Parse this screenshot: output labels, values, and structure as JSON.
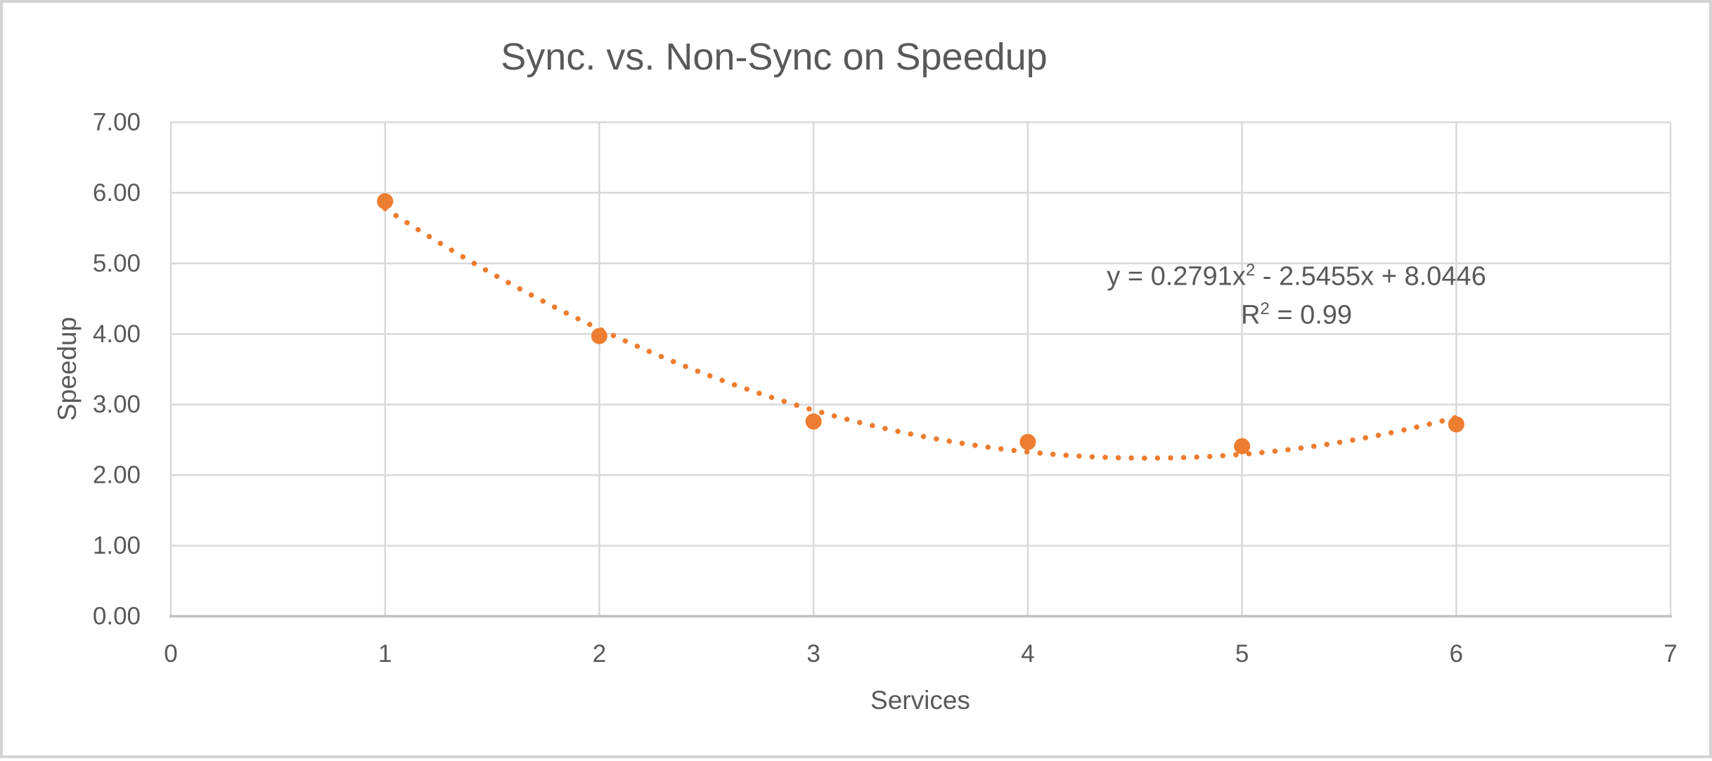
{
  "chart_data": {
    "type": "scatter",
    "title": "Sync. vs. Non-Sync on Speedup",
    "xlabel": "Services",
    "ylabel": "Speedup",
    "series": [
      {
        "name": "Speedup",
        "x": [
          1,
          2,
          3,
          4,
          5,
          6
        ],
        "y": [
          5.88,
          3.97,
          2.76,
          2.47,
          2.41,
          2.72
        ]
      }
    ],
    "xlim": [
      0,
      7
    ],
    "ylim": [
      0,
      7
    ],
    "x_tick_labels": [
      "0",
      "1",
      "2",
      "3",
      "4",
      "5",
      "6",
      "7"
    ],
    "y_tick_labels": [
      "0.00",
      "1.00",
      "2.00",
      "3.00",
      "4.00",
      "5.00",
      "6.00",
      "7.00"
    ],
    "grid": true,
    "legend": "none",
    "marker_color": "#ED7D31",
    "trendline": {
      "kind": "polynomial-order-2",
      "coefficients": {
        "a": 0.2791,
        "b": -2.5455,
        "c": 8.0446
      },
      "x_range": [
        1,
        6
      ],
      "style": "dotted",
      "color": "#ED7D31",
      "equation": {
        "pre": "y = 0.2791x",
        "sup": "2",
        "post": " - 2.5455x + 8.0446"
      },
      "r_squared": {
        "pre": "R",
        "sup": "2",
        "post": " = 0.99"
      }
    },
    "colors": {
      "gridline": "#D9D9D9",
      "axis_line": "#BFBFBF",
      "text": "#595959",
      "background": "#FFFFFF",
      "frame_border": "#D3D3D3"
    }
  }
}
